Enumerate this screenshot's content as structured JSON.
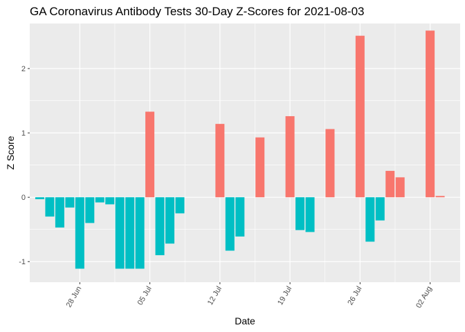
{
  "chart_data": {
    "type": "bar",
    "title": "GA Coronavirus Antibody Tests 30-Day Z-Scores for 2021-08-03",
    "xlabel": "Date",
    "ylabel": "Z Score",
    "x_start": "2021-06-24",
    "xlim": [
      "2021-06-23",
      "2021-08-05"
    ],
    "ylim": [
      -1.32,
      2.7
    ],
    "y_ticks": [
      -1,
      0,
      1,
      2
    ],
    "x_ticks": [
      {
        "date": "2021-06-28",
        "label": "28 Jun"
      },
      {
        "date": "2021-07-05",
        "label": "05 Jul"
      },
      {
        "date": "2021-07-12",
        "label": "12 Jul"
      },
      {
        "date": "2021-07-19",
        "label": "19 Jul"
      },
      {
        "date": "2021-07-26",
        "label": "26 Jul"
      },
      {
        "date": "2021-08-02",
        "label": "02 Aug"
      }
    ],
    "categories": [
      "2021-06-24",
      "2021-06-25",
      "2021-06-26",
      "2021-06-27",
      "2021-06-28",
      "2021-06-29",
      "2021-06-30",
      "2021-07-01",
      "2021-07-02",
      "2021-07-03",
      "2021-07-04",
      "2021-07-05",
      "2021-07-06",
      "2021-07-07",
      "2021-07-08",
      "2021-07-09",
      "2021-07-10",
      "2021-07-11",
      "2021-07-12",
      "2021-07-13",
      "2021-07-14",
      "2021-07-15",
      "2021-07-16",
      "2021-07-17",
      "2021-07-18",
      "2021-07-19",
      "2021-07-20",
      "2021-07-21",
      "2021-07-22",
      "2021-07-23",
      "2021-07-24",
      "2021-07-25",
      "2021-07-26",
      "2021-07-27",
      "2021-07-28",
      "2021-07-29",
      "2021-07-30",
      "2021-07-31",
      "2021-08-01",
      "2021-08-02",
      "2021-08-03"
    ],
    "values": [
      -0.03,
      -0.3,
      -0.47,
      -0.16,
      -1.11,
      -0.4,
      -0.08,
      -0.11,
      -1.11,
      -1.11,
      -1.11,
      1.33,
      -0.9,
      -0.72,
      -0.25,
      null,
      null,
      null,
      1.14,
      -0.83,
      -0.61,
      null,
      0.93,
      null,
      null,
      1.26,
      -0.51,
      -0.54,
      null,
      1.06,
      null,
      null,
      2.51,
      -0.69,
      -0.36,
      0.41,
      0.31,
      null,
      null,
      2.59,
      0.02
    ],
    "colors": {
      "positive": "#F8766D",
      "negative": "#00BFC4",
      "panel": "#EBEBEB",
      "grid": "#FFFFFF"
    }
  }
}
